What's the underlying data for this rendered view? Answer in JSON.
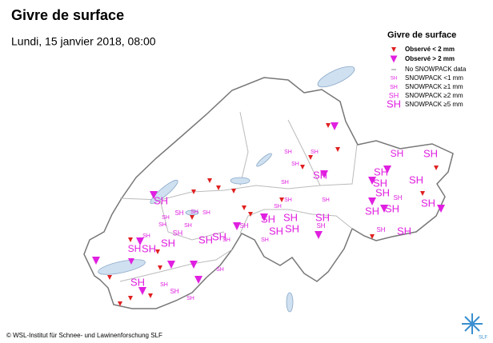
{
  "header": {
    "title": "Givre de surface",
    "subtitle": "Lundi, 15 janvier 2018, 08:00"
  },
  "legend": {
    "title": "Givre de surface",
    "items": [
      {
        "label": "Observé < 2 mm"
      },
      {
        "label": "Observé > 2 mm"
      },
      {
        "label": "No SNOWPACK data"
      },
      {
        "symbol": "SH",
        "label": "SNOWPACK <1 mm"
      },
      {
        "symbol": "SH",
        "label": "SNOWPACK ≥1 mm"
      },
      {
        "symbol": "SH",
        "label": "SNOWPACK ≥2 mm"
      },
      {
        "symbol": "SH",
        "label": "SNOWPACK ≥5 mm"
      }
    ]
  },
  "map": {
    "labels": [
      "SH",
      "SH",
      "SH",
      "SH",
      "SH",
      "SH",
      "SH",
      "SH",
      "SH",
      "SH",
      "SH",
      "SH",
      "SH",
      "SH",
      "SH",
      "SH",
      "SH",
      "SH",
      "SH",
      "SH",
      "SH",
      "SH",
      "SH",
      "SH",
      "SH",
      "SH",
      "SH",
      "SH",
      "SH",
      "SH",
      "SH",
      "SH",
      "SH",
      "SH",
      "SH",
      "SH",
      "SH",
      "SH",
      "SH",
      "SH",
      "SH",
      "SH",
      "SH",
      "SH",
      "SH",
      "SH",
      "SH",
      "SH"
    ]
  },
  "footer": {
    "credit": "© WSL-Institut für Schnee- und Lawinenforschung SLF",
    "logo": "SLF"
  }
}
